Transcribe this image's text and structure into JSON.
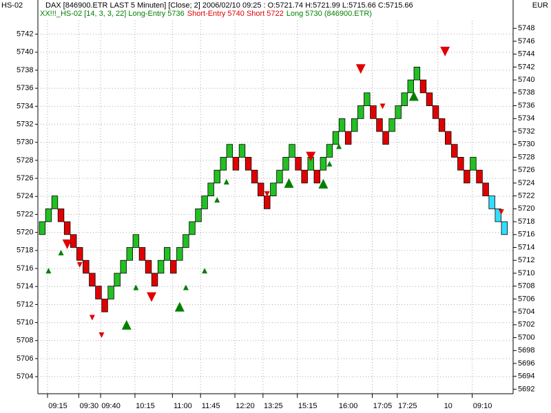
{
  "chart_data": {
    "type": "renko",
    "corner_left": "HS-02",
    "corner_right": "EUR",
    "title": "DAX [846900.ETR LAST 5 Minuten] [Close; 2] 2006/02/10 09:25 : O:5721.74 H:5721.99 L:5715.66 C:5715.66",
    "subtitle": [
      {
        "text": "XX!!!_HS-02 [14, 3, 3, 22] Long-Entry 5736",
        "color": "#008000"
      },
      {
        "text": "Short-Entry 5740 Short 5722",
        "color": "#e00000"
      },
      {
        "text": "Long 5730 (846900.ETR)",
        "color": "#008000"
      }
    ],
    "ylim": [
      5702.1,
      5743.5
    ],
    "yticks": [
      5704,
      5706,
      5708,
      5710,
      5712,
      5714,
      5716,
      5718,
      5720,
      5722,
      5724,
      5726,
      5728,
      5730,
      5732,
      5734,
      5736,
      5738,
      5740,
      5742
    ],
    "y2lim": [
      5691.3,
      5749.2
    ],
    "y2ticks": [
      5692,
      5694,
      5696,
      5698,
      5700,
      5702,
      5704,
      5706,
      5708,
      5710,
      5712,
      5714,
      5716,
      5718,
      5720,
      5722,
      5724,
      5726,
      5728,
      5730,
      5732,
      5734,
      5736,
      5738,
      5740,
      5742,
      5744,
      5746,
      5748
    ],
    "xlim": [
      -0.7,
      75.4
    ],
    "xticks": [
      {
        "value": 2.5,
        "label": "09:15"
      },
      {
        "value": 7.5,
        "label": "09:30"
      },
      {
        "value": 11,
        "label": "09:40"
      },
      {
        "value": 16.5,
        "label": "10:15"
      },
      {
        "value": 22.5,
        "label": "11:00"
      },
      {
        "value": 27,
        "label": "11:45"
      },
      {
        "value": 32.5,
        "label": "12:20"
      },
      {
        "value": 37,
        "label": "13:25"
      },
      {
        "value": 42.5,
        "label": "15:15"
      },
      {
        "value": 49,
        "label": "16:00"
      },
      {
        "value": 54.5,
        "label": "17:05"
      },
      {
        "value": 58.5,
        "label": "17:25"
      },
      {
        "value": 65,
        "label": "10"
      },
      {
        "value": 70.5,
        "label": "09:10"
      }
    ],
    "grid": true,
    "styles": {
      "up": "#22c022",
      "down": "#e00000",
      "live": "#33ddff"
    },
    "bricks": {
      "axis": "y2",
      "open": [
        5716,
        5718,
        5720,
        5720,
        5718,
        5716,
        5714,
        5712,
        5710,
        5708,
        5706,
        5706,
        5708,
        5710,
        5712,
        5714,
        5714,
        5712,
        5710,
        5710,
        5712,
        5712,
        5712,
        5714,
        5716,
        5718,
        5720,
        5722,
        5724,
        5726,
        5728,
        5728,
        5728,
        5728,
        5726,
        5724,
        5722,
        5722,
        5724,
        5726,
        5728,
        5728,
        5726,
        5726,
        5726,
        5726,
        5728,
        5730,
        5732,
        5732,
        5732,
        5734,
        5736,
        5736,
        5734,
        5732,
        5732,
        5734,
        5736,
        5738,
        5740,
        5740,
        5738,
        5736,
        5734,
        5732,
        5730,
        5728,
        5726,
        5726,
        5726,
        5724,
        5722,
        5720,
        5718
      ],
      "close": [
        5718,
        5720,
        5722,
        5718,
        5716,
        5714,
        5712,
        5710,
        5708,
        5706,
        5704,
        5708,
        5710,
        5712,
        5714,
        5716,
        5712,
        5710,
        5708,
        5712,
        5714,
        5710,
        5714,
        5716,
        5718,
        5720,
        5722,
        5724,
        5726,
        5728,
        5730,
        5726,
        5730,
        5726,
        5724,
        5722,
        5720,
        5724,
        5726,
        5728,
        5730,
        5726,
        5724,
        5728,
        5724,
        5728,
        5730,
        5732,
        5734,
        5730,
        5734,
        5736,
        5738,
        5734,
        5732,
        5730,
        5734,
        5736,
        5738,
        5740,
        5742,
        5738,
        5736,
        5734,
        5732,
        5730,
        5728,
        5726,
        5724,
        5728,
        5724,
        5722,
        5720,
        5718,
        5716
      ],
      "style": [
        "up",
        "up",
        "up",
        "down",
        "down",
        "down",
        "down",
        "down",
        "down",
        "down",
        "down",
        "up",
        "up",
        "up",
        "up",
        "up",
        "down",
        "down",
        "down",
        "up",
        "up",
        "down",
        "up",
        "up",
        "up",
        "up",
        "up",
        "up",
        "up",
        "up",
        "up",
        "down",
        "up",
        "down",
        "down",
        "down",
        "down",
        "up",
        "up",
        "up",
        "up",
        "down",
        "down",
        "up",
        "down",
        "up",
        "up",
        "up",
        "up",
        "down",
        "up",
        "up",
        "up",
        "down",
        "down",
        "down",
        "up",
        "up",
        "up",
        "up",
        "up",
        "down",
        "down",
        "down",
        "down",
        "down",
        "down",
        "down",
        "down",
        "up",
        "down",
        "down",
        "live",
        "live",
        "live"
      ]
    },
    "signals": {
      "axis": "y2",
      "long": {
        "color": "#008000",
        "size": 8,
        "x": [
          1,
          3,
          15,
          23,
          26,
          28,
          29.5,
          46,
          47.5
        ],
        "values": [
          5710.4,
          5713.2,
          5707.8,
          5707.8,
          5710.4,
          5721.4,
          5724.2,
          5727.0,
          5729.7
        ]
      },
      "long_strong": {
        "color": "#008000",
        "size": 14,
        "x": [
          13.5,
          22,
          39.5,
          45,
          59.5
        ],
        "values": [
          5702.0,
          5704.8,
          5724.0,
          5723.9,
          5737.5
        ]
      },
      "short": {
        "color": "#e00000",
        "size": 8,
        "x": [
          6,
          8,
          9.5,
          36,
          54.5,
          73.5
        ],
        "values": [
          5711.3,
          5703.1,
          5700.4,
          5722.3,
          5735.9,
          5719.5
        ]
      },
      "short_strong": {
        "color": "#e00000",
        "size": 14,
        "x": [
          4,
          17.5,
          43,
          51,
          64.5
        ],
        "values": [
          5714.5,
          5706.3,
          5728.1,
          5741.7,
          5744.4
        ]
      }
    }
  }
}
